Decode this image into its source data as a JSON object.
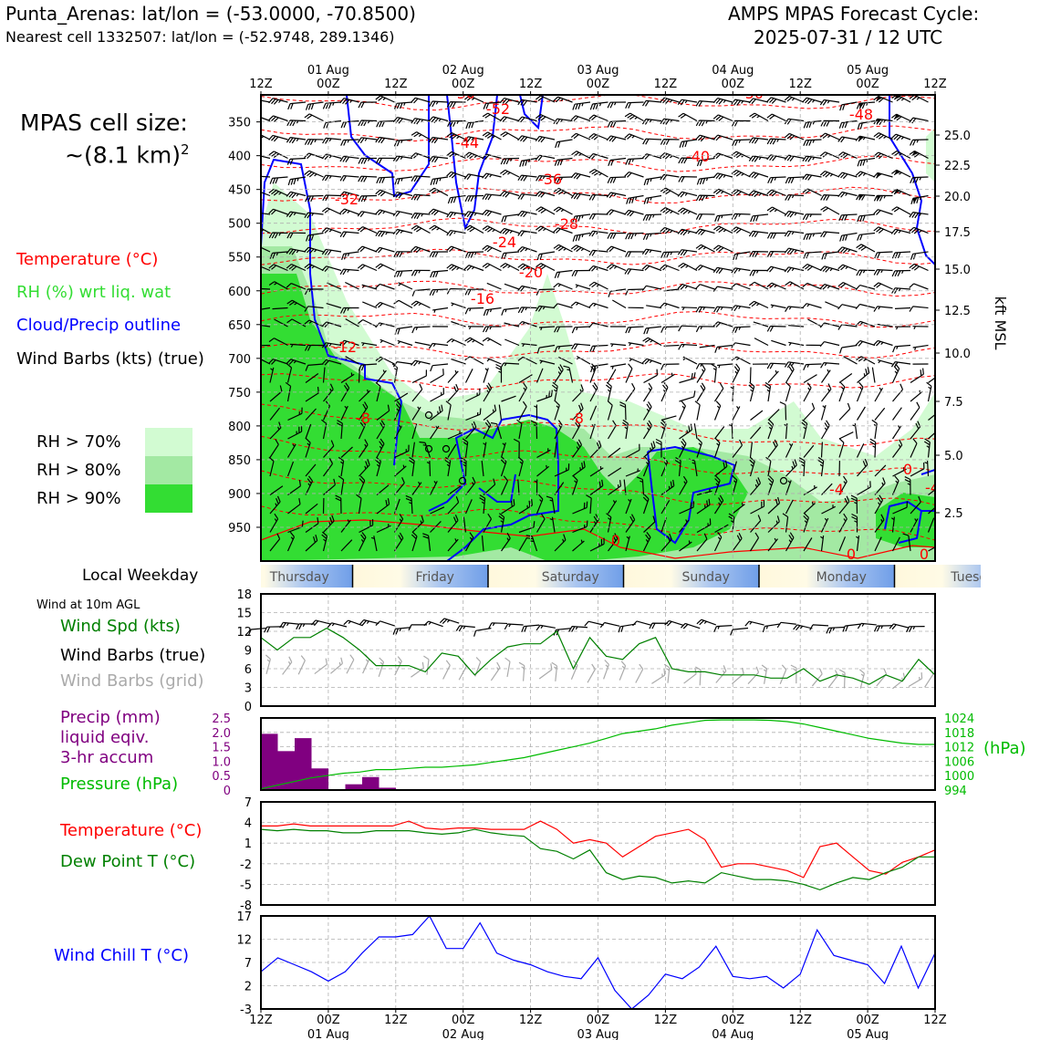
{
  "header": {
    "station_line": "Punta_Arenas: lat/lon = (-53.0000, -70.8500)",
    "cell_line": "Nearest cell 1332507: lat/lon = (-52.9748, 289.1346)",
    "cycle_title": "AMPS MPAS Forecast Cycle:",
    "cycle_time": "2025-07-31 / 12 UTC"
  },
  "side_legend": {
    "cell_size_label": "MPAS cell size:",
    "cell_size_value": "~(8.1 km)",
    "cell_size_exp": "2",
    "temperature": "Temperature (°C)",
    "rh": "RH (%) wrt liq. wat",
    "cloud": "Cloud/Precip outline",
    "wind": "Wind Barbs (kts) (true)",
    "rh70": "RH > 70%",
    "rh80": "RH > 80%",
    "rh90": "RH > 90%",
    "weekday_label": "Local Weekday",
    "wind10m": "Wind at 10m AGL",
    "wind_spd": "Wind Spd (kts)",
    "wind_barbs_true": "Wind Barbs (true)",
    "wind_barbs_grid": "Wind Barbs (grid)",
    "precip1": "Precip (mm)",
    "precip2": "liquid eqiv.",
    "precip3": "3-hr accum",
    "pressure": "Pressure (hPa)",
    "sfc_temp": "Temperature (°C)",
    "dew": "Dew Point T (°C)",
    "wind_chill": "Wind Chill T (°C)"
  },
  "colors": {
    "temperature": "#ff0000",
    "rh_text": "#33dd33",
    "cloud": "#0000ff",
    "rh70": "#d2fbd2",
    "rh80": "#a3e9a3",
    "rh90": "#33dd33",
    "wind_speed": "#008000",
    "precip": "#800080",
    "pressure": "#00bb00",
    "dew": "#008000",
    "wind_chill": "#0000ff",
    "grid_barbs": "#aaaaaa"
  },
  "chart_data": [
    {
      "type": "heatmap",
      "name": "time-height cross section",
      "x_ticks_top": [
        "12Z",
        "00Z",
        "12Z",
        "00Z",
        "12Z",
        "00Z",
        "12Z",
        "00Z",
        "12Z",
        "00Z",
        "12Z"
      ],
      "x_dates_top": [
        "01 Aug",
        "02 Aug",
        "03 Aug",
        "04 Aug",
        "05 Aug"
      ],
      "y_left_ticks": [
        "350",
        "400",
        "450",
        "500",
        "550",
        "600",
        "650",
        "700",
        "750",
        "800",
        "850",
        "900",
        "950"
      ],
      "y_right_ticks": [
        "25.0",
        "22.5",
        "20.0",
        "17.5",
        "15.0",
        "12.5",
        "10.0",
        "7.5",
        "5.0",
        "2.5"
      ],
      "y_right_label": "kft MSL",
      "temperature_labels": [
        "-50",
        "-52",
        "-50",
        "-48",
        "-44",
        "-40",
        "-36",
        "-32",
        "-28",
        "-24",
        "-20",
        "-16",
        "-12",
        "-8",
        "-8",
        "-4",
        "0",
        "0",
        "0",
        "0",
        "-4"
      ]
    },
    {
      "type": "bar",
      "name": "weekday strip",
      "categories": [
        "Thursday",
        "Friday",
        "Saturday",
        "Sunday",
        "Monday",
        "Tuesday"
      ]
    },
    {
      "type": "line",
      "name": "10 m wind speed",
      "ylim": [
        0,
        18
      ],
      "y_ticks": [
        "0",
        "3",
        "6",
        "9",
        "12",
        "15",
        "18"
      ],
      "values": [
        11,
        9,
        11,
        11,
        12.5,
        11,
        9,
        6.5,
        6.5,
        6.5,
        5.5,
        8.5,
        8,
        5,
        7.5,
        9.5,
        10,
        10,
        12,
        6,
        11,
        8,
        7.5,
        10,
        11,
        6,
        5.5,
        5.5,
        5,
        5,
        5,
        4.5,
        4.5,
        6,
        4,
        5,
        4.5,
        3.5,
        5,
        4,
        7.5,
        5
      ]
    },
    {
      "type": "bar",
      "name": "3-hr precipitation and pressure",
      "ylim": [
        0,
        2.5
      ],
      "y_ticks": [
        "0",
        "0.5",
        "1.0",
        "1.5",
        "2.0",
        "2.5"
      ],
      "values": [
        1.95,
        1.35,
        1.8,
        0.75,
        0,
        0.2,
        0.45,
        0.08
      ],
      "pressure_ylim": [
        994,
        1024
      ],
      "pressure_ticks": [
        "994",
        "1000",
        "1006",
        "1012",
        "1018",
        "1024"
      ],
      "pressure_unit": "(hPa)",
      "pressure_values": [
        994.5,
        996,
        997.5,
        999,
        1000,
        1001,
        1001.5,
        1002.5,
        1002.5,
        1003,
        1003.5,
        1003.5,
        1004,
        1004.5,
        1005.5,
        1006.5,
        1007.5,
        1009,
        1010.5,
        1012,
        1013.5,
        1015.5,
        1017.5,
        1018.5,
        1019.5,
        1021,
        1022,
        1023,
        1023.2,
        1023.2,
        1023.2,
        1023,
        1022.5,
        1021.5,
        1020,
        1018.5,
        1017,
        1015.5,
        1014.5,
        1013.5,
        1013,
        1013
      ]
    },
    {
      "type": "line",
      "name": "surface temperature and dew point",
      "ylim": [
        -8,
        7
      ],
      "y_ticks": [
        "-8",
        "-5",
        "-2",
        "1",
        "4",
        "7"
      ],
      "series": [
        {
          "name": "Temperature (°C)",
          "values": [
            3.5,
            3.5,
            3.8,
            3.5,
            3.5,
            3.5,
            3.5,
            3.5,
            3.5,
            4.2,
            3.2,
            3,
            3.2,
            3.2,
            3,
            3,
            3,
            4.2,
            3,
            1,
            1.5,
            1,
            -1,
            0.5,
            2,
            2.5,
            3,
            1.5,
            -2.5,
            -2,
            -2,
            -2.5,
            -3,
            -4,
            0.5,
            1,
            -1,
            -3,
            -3.5,
            -1.8,
            -1,
            0
          ]
        },
        {
          "name": "Dew Point T (°C)",
          "values": [
            3,
            2.8,
            3,
            2.8,
            2.8,
            2.5,
            2.5,
            2.8,
            2.8,
            2.8,
            2.5,
            2.3,
            2.5,
            3,
            2.5,
            2.2,
            2,
            0.2,
            -0.2,
            -1.3,
            0,
            -3.3,
            -4.3,
            -3.8,
            -4,
            -4.8,
            -4.5,
            -4.8,
            -3.3,
            -3.8,
            -4.3,
            -4.3,
            -4.5,
            -5,
            -5.8,
            -4.8,
            -4,
            -4.3,
            -3.3,
            -2.5,
            -1,
            -1
          ]
        }
      ]
    },
    {
      "type": "line",
      "name": "wind chill",
      "ylim": [
        -3,
        17
      ],
      "y_ticks": [
        "-3",
        "2",
        "7",
        "12",
        "17"
      ],
      "values": [
        5,
        8,
        6.5,
        5,
        3,
        5,
        9,
        12.5,
        12.5,
        13,
        17,
        10,
        10,
        15.5,
        9,
        7.5,
        6.5,
        5,
        4,
        3.5,
        8,
        1,
        -3,
        0,
        4.5,
        3.5,
        6,
        10.5,
        4,
        3.5,
        4,
        1.5,
        4.5,
        14,
        8.5,
        7.5,
        6.5,
        2.5,
        10.5,
        1.5,
        9
      ]
    }
  ],
  "bottom_axis": {
    "ticks": [
      "12Z",
      "00Z",
      "12Z",
      "00Z",
      "12Z",
      "00Z",
      "12Z",
      "00Z",
      "12Z",
      "00Z",
      "12Z"
    ],
    "dates": [
      "01 Aug",
      "02 Aug",
      "03 Aug",
      "04 Aug",
      "05 Aug"
    ]
  }
}
